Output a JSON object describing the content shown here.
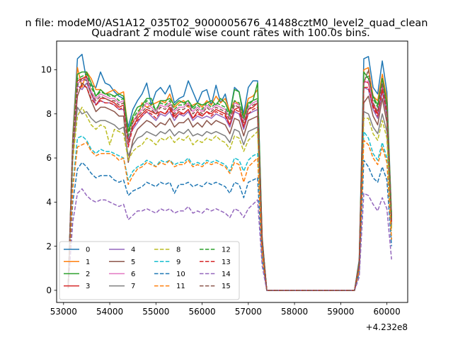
{
  "figure": {
    "suptitle": "n file: modeM0/AS1A12_035T02_9000005676_41488cztM0_level2_quad_clean"
  },
  "chart_data": {
    "type": "line",
    "title": "Quadrant 2 module wise count rates with 100.0s bins.",
    "xlabel": "",
    "ylabel": "",
    "x_offset_label": "+4.232e8",
    "x_ticks": [
      53000,
      54000,
      55000,
      56000,
      57000,
      58000,
      59000,
      60000
    ],
    "y_ticks": [
      0,
      2,
      4,
      6,
      8,
      10
    ],
    "xlim": [
      52850,
      60450
    ],
    "ylim": [
      -0.55,
      11.3
    ],
    "grid": false,
    "legend_location": "lower-left",
    "legend_columns": 4,
    "x": [
      53100,
      53200,
      53300,
      53400,
      53500,
      53600,
      53700,
      53800,
      53900,
      54000,
      54100,
      54200,
      54300,
      54400,
      54500,
      54600,
      54700,
      54800,
      54900,
      55000,
      55100,
      55200,
      55300,
      55400,
      55500,
      55600,
      55700,
      55800,
      55900,
      56000,
      56100,
      56200,
      56300,
      56400,
      56500,
      56600,
      56700,
      56800,
      56900,
      57000,
      57100,
      57200,
      57300,
      57400,
      57500,
      59300,
      59400,
      59500,
      59600,
      59700,
      59800,
      59900,
      60000,
      60100
    ],
    "series": [
      {
        "name": "0",
        "color": "#1f77b4",
        "dash": "solid",
        "values": [
          0.1,
          7.0,
          10.5,
          10.7,
          9.5,
          9.3,
          9.2,
          9.9,
          9.4,
          9.3,
          9.0,
          8.8,
          8.7,
          7.4,
          8.2,
          8.6,
          8.9,
          9.4,
          8.4,
          9.0,
          9.2,
          8.9,
          9.3,
          8.5,
          8.7,
          8.8,
          9.5,
          9.0,
          8.5,
          9.0,
          9.1,
          8.4,
          9.3,
          8.5,
          8.9,
          8.0,
          9.2,
          9.0,
          8.0,
          9.2,
          9.5,
          9.5,
          2.4,
          0.0,
          0.0,
          0.0,
          1.4,
          10.5,
          10.6,
          9.2,
          8.9,
          10.4,
          9.0,
          3.4
        ]
      },
      {
        "name": "1",
        "color": "#ff7f0e",
        "dash": "solid",
        "values": [
          0.1,
          6.9,
          10.1,
          9.2,
          9.9,
          9.6,
          9.1,
          9.1,
          8.9,
          9.0,
          9.1,
          8.9,
          9.0,
          7.2,
          7.7,
          7.9,
          8.5,
          8.3,
          8.4,
          8.5,
          8.6,
          8.5,
          8.9,
          8.3,
          8.5,
          8.6,
          8.3,
          8.4,
          8.5,
          8.3,
          8.6,
          8.4,
          8.8,
          8.5,
          8.7,
          8.1,
          8.6,
          8.4,
          7.9,
          8.7,
          8.8,
          9.1,
          2.3,
          0.0,
          0.0,
          0.0,
          1.3,
          10.0,
          10.1,
          8.8,
          8.6,
          9.8,
          8.7,
          3.3
        ]
      },
      {
        "name": "2",
        "color": "#2ca02c",
        "dash": "solid",
        "values": [
          0.1,
          6.7,
          9.8,
          9.9,
          9.9,
          9.4,
          8.8,
          9.1,
          8.9,
          8.9,
          8.8,
          8.9,
          8.8,
          7.2,
          7.9,
          8.3,
          8.4,
          8.7,
          8.7,
          8.1,
          8.6,
          8.6,
          8.7,
          8.4,
          8.6,
          8.5,
          8.6,
          8.3,
          8.5,
          8.4,
          8.5,
          8.6,
          8.4,
          8.7,
          8.5,
          8.0,
          9.1,
          9.0,
          7.8,
          8.5,
          8.6,
          9.4,
          2.3,
          0.0,
          0.0,
          0.0,
          1.3,
          9.9,
          9.6,
          8.8,
          8.4,
          9.6,
          8.5,
          3.3
        ]
      },
      {
        "name": "3",
        "color": "#d62728",
        "dash": "solid",
        "values": [
          0.1,
          6.5,
          9.5,
          9.6,
          9.7,
          9.0,
          8.4,
          8.7,
          8.7,
          8.6,
          8.5,
          8.3,
          8.4,
          6.8,
          7.4,
          7.8,
          8.0,
          8.2,
          8.1,
          8.0,
          8.1,
          8.0,
          8.3,
          7.9,
          8.1,
          8.0,
          8.2,
          7.8,
          8.1,
          7.9,
          8.1,
          8.0,
          8.2,
          8.1,
          8.0,
          7.5,
          8.2,
          8.3,
          7.4,
          8.2,
          8.3,
          8.5,
          2.2,
          0.0,
          0.0,
          0.0,
          1.2,
          9.5,
          9.4,
          8.4,
          8.0,
          9.3,
          8.1,
          3.1
        ]
      },
      {
        "name": "4",
        "color": "#9467bd",
        "dash": "solid",
        "values": [
          0.1,
          6.6,
          9.3,
          9.1,
          9.4,
          8.9,
          8.4,
          8.6,
          8.5,
          8.5,
          8.4,
          8.2,
          8.2,
          6.9,
          7.3,
          7.6,
          7.9,
          8.1,
          7.9,
          7.7,
          8.0,
          7.9,
          8.1,
          7.7,
          8.0,
          7.9,
          8.1,
          7.7,
          7.9,
          7.8,
          7.9,
          7.8,
          8.0,
          7.9,
          7.8,
          7.4,
          8.1,
          8.0,
          7.3,
          8.0,
          8.1,
          8.2,
          2.2,
          0.0,
          0.0,
          0.0,
          1.2,
          9.2,
          9.1,
          8.2,
          7.8,
          9.0,
          7.9,
          3.0
        ]
      },
      {
        "name": "5",
        "color": "#8c564b",
        "dash": "solid",
        "values": [
          0.1,
          6.3,
          8.8,
          9.4,
          9.2,
          8.6,
          8.1,
          8.3,
          8.3,
          8.2,
          8.1,
          7.9,
          7.9,
          5.8,
          6.8,
          7.3,
          7.5,
          7.7,
          7.6,
          7.4,
          7.6,
          7.5,
          7.8,
          7.4,
          7.6,
          7.6,
          7.8,
          7.4,
          7.6,
          7.4,
          7.7,
          7.5,
          7.7,
          7.6,
          7.5,
          7.1,
          7.8,
          7.7,
          7.0,
          7.7,
          7.8,
          7.9,
          2.1,
          0.0,
          0.0,
          0.0,
          1.1,
          8.5,
          8.8,
          7.9,
          7.5,
          8.7,
          7.6,
          2.9
        ]
      },
      {
        "name": "6",
        "color": "#e377c2",
        "dash": "solid",
        "values": [
          0.1,
          6.4,
          9.4,
          9.5,
          9.6,
          9.0,
          8.7,
          8.9,
          8.8,
          8.7,
          8.7,
          8.5,
          8.6,
          6.5,
          7.6,
          8.0,
          8.2,
          8.5,
          8.3,
          8.1,
          8.4,
          8.3,
          8.5,
          8.1,
          8.3,
          8.3,
          8.5,
          8.1,
          8.3,
          8.1,
          8.4,
          8.2,
          8.4,
          8.3,
          8.2,
          7.8,
          8.5,
          8.4,
          7.7,
          8.3,
          8.5,
          8.6,
          2.2,
          0.0,
          0.0,
          0.0,
          1.2,
          9.4,
          9.5,
          8.5,
          8.1,
          9.4,
          8.2,
          3.2
        ]
      },
      {
        "name": "7",
        "color": "#7f7f7f",
        "dash": "solid",
        "values": [
          0.1,
          6.1,
          8.3,
          8.0,
          8.1,
          7.8,
          7.6,
          7.7,
          7.7,
          7.6,
          7.5,
          7.3,
          7.4,
          6.1,
          6.6,
          6.9,
          7.0,
          7.2,
          7.1,
          7.0,
          7.2,
          7.1,
          7.3,
          7.0,
          7.2,
          7.1,
          7.3,
          7.0,
          7.1,
          7.0,
          7.2,
          7.1,
          7.2,
          7.1,
          7.0,
          6.7,
          7.3,
          7.2,
          6.6,
          7.2,
          7.3,
          7.4,
          2.0,
          0.0,
          0.0,
          0.0,
          1.1,
          8.1,
          8.0,
          7.4,
          7.1,
          8.0,
          7.2,
          2.8
        ]
      },
      {
        "name": "8",
        "color": "#bcbd22",
        "dash": "dashed",
        "values": [
          0.1,
          5.9,
          7.9,
          8.3,
          7.9,
          7.5,
          7.3,
          7.5,
          7.4,
          6.6,
          7.3,
          7.2,
          7.1,
          5.9,
          6.3,
          6.5,
          6.6,
          6.9,
          6.8,
          6.6,
          6.9,
          6.8,
          7.0,
          6.7,
          6.9,
          6.8,
          7.0,
          6.6,
          6.8,
          6.7,
          6.9,
          6.8,
          7.0,
          6.8,
          6.7,
          6.4,
          7.0,
          6.9,
          6.3,
          6.8,
          7.0,
          7.2,
          1.9,
          0.0,
          0.0,
          0.0,
          1.0,
          7.8,
          7.8,
          7.1,
          6.8,
          7.7,
          6.9,
          2.7
        ]
      },
      {
        "name": "9",
        "color": "#17becf",
        "dash": "dashed",
        "values": [
          0.1,
          4.8,
          6.9,
          7.0,
          6.8,
          6.4,
          6.2,
          6.4,
          6.3,
          6.3,
          6.2,
          6.1,
          6.0,
          5.0,
          5.4,
          5.6,
          5.7,
          5.9,
          5.8,
          5.6,
          5.9,
          5.8,
          5.9,
          5.7,
          5.8,
          5.8,
          6.0,
          5.7,
          5.8,
          5.7,
          5.9,
          5.8,
          5.9,
          5.8,
          5.7,
          5.4,
          6.0,
          5.9,
          5.4,
          5.9,
          6.1,
          6.2,
          1.7,
          0.0,
          0.0,
          0.0,
          0.9,
          7.2,
          6.9,
          6.2,
          5.9,
          6.7,
          6.0,
          2.3
        ]
      },
      {
        "name": "10",
        "color": "#1f77b4",
        "dash": "dashed",
        "values": [
          0.1,
          4.0,
          5.5,
          5.8,
          5.6,
          5.3,
          5.1,
          5.2,
          5.2,
          5.2,
          5.0,
          4.9,
          5.0,
          4.3,
          4.5,
          4.6,
          4.7,
          4.9,
          4.8,
          4.7,
          4.9,
          4.8,
          4.9,
          4.4,
          4.8,
          4.8,
          4.9,
          4.7,
          4.8,
          4.7,
          4.9,
          4.8,
          4.9,
          4.8,
          4.7,
          4.4,
          4.9,
          4.8,
          4.2,
          4.9,
          5.0,
          5.1,
          1.4,
          0.0,
          0.0,
          0.0,
          0.8,
          5.9,
          5.6,
          5.1,
          4.9,
          5.6,
          5.0,
          2.0
        ]
      },
      {
        "name": "11",
        "color": "#ff7f0e",
        "dash": "dashed",
        "values": [
          0.1,
          4.6,
          6.5,
          6.6,
          6.7,
          6.3,
          6.1,
          6.2,
          6.2,
          6.2,
          6.1,
          5.9,
          6.0,
          4.8,
          5.2,
          5.5,
          5.6,
          5.8,
          5.7,
          5.6,
          5.8,
          5.7,
          5.9,
          5.6,
          5.7,
          5.7,
          5.9,
          5.6,
          5.7,
          5.6,
          5.8,
          5.7,
          5.8,
          5.7,
          5.6,
          5.3,
          5.8,
          5.7,
          4.9,
          5.6,
          5.8,
          6.0,
          1.6,
          0.0,
          0.0,
          0.0,
          0.9,
          6.8,
          6.6,
          6.0,
          5.7,
          6.5,
          5.8,
          2.3
        ]
      },
      {
        "name": "12",
        "color": "#2ca02c",
        "dash": "dashed",
        "values": [
          0.1,
          6.6,
          9.6,
          9.7,
          9.8,
          9.2,
          8.8,
          9.0,
          8.9,
          8.8,
          8.8,
          8.6,
          8.7,
          7.0,
          7.8,
          8.1,
          8.3,
          8.6,
          8.4,
          8.2,
          8.5,
          8.4,
          8.6,
          8.2,
          8.4,
          8.4,
          8.6,
          8.2,
          8.4,
          8.2,
          8.5,
          8.3,
          8.5,
          8.4,
          8.3,
          7.9,
          8.6,
          8.5,
          7.8,
          8.4,
          8.6,
          8.7,
          2.3,
          0.0,
          0.0,
          0.0,
          1.2,
          9.6,
          9.7,
          8.7,
          8.3,
          9.6,
          8.4,
          3.3
        ]
      },
      {
        "name": "13",
        "color": "#d62728",
        "dash": "dashed",
        "values": [
          0.1,
          6.4,
          9.1,
          9.3,
          9.2,
          8.7,
          8.4,
          8.6,
          8.5,
          8.5,
          8.4,
          8.2,
          8.3,
          6.5,
          7.4,
          7.7,
          7.9,
          8.1,
          8.0,
          7.8,
          8.1,
          8.0,
          8.2,
          7.8,
          8.0,
          8.0,
          8.2,
          7.8,
          8.0,
          7.9,
          8.1,
          7.9,
          8.1,
          8.0,
          7.9,
          7.5,
          8.2,
          8.1,
          7.4,
          8.0,
          8.2,
          8.3,
          2.2,
          0.0,
          0.0,
          0.0,
          1.2,
          9.2,
          9.2,
          8.3,
          7.9,
          9.1,
          8.0,
          3.1
        ]
      },
      {
        "name": "14",
        "color": "#9467bd",
        "dash": "dashed",
        "values": [
          0.1,
          3.1,
          4.4,
          4.6,
          4.3,
          4.1,
          4.0,
          4.1,
          4.1,
          4.0,
          3.9,
          3.8,
          3.9,
          3.2,
          3.4,
          3.6,
          3.6,
          3.7,
          3.6,
          3.5,
          3.7,
          3.6,
          3.7,
          3.5,
          3.6,
          3.6,
          3.8,
          3.5,
          3.6,
          3.5,
          3.7,
          3.6,
          3.7,
          3.6,
          3.5,
          3.3,
          3.7,
          3.6,
          3.3,
          3.7,
          3.9,
          4.1,
          1.1,
          0.0,
          0.0,
          0.0,
          0.6,
          4.4,
          4.3,
          3.9,
          3.6,
          4.2,
          3.7,
          1.4
        ]
      },
      {
        "name": "15",
        "color": "#8c564b",
        "dash": "dashed",
        "values": [
          0.1,
          6.5,
          9.3,
          9.6,
          9.5,
          8.9,
          8.6,
          8.8,
          8.7,
          8.6,
          8.6,
          8.4,
          8.5,
          6.7,
          7.6,
          7.9,
          8.1,
          8.3,
          8.2,
          8.0,
          8.3,
          8.2,
          8.4,
          8.0,
          8.2,
          8.2,
          8.4,
          8.0,
          8.2,
          8.0,
          8.3,
          8.1,
          8.3,
          8.2,
          8.1,
          7.7,
          8.4,
          8.3,
          7.6,
          8.2,
          8.4,
          8.5,
          2.3,
          0.0,
          0.0,
          0.0,
          1.2,
          9.4,
          10.0,
          8.5,
          8.1,
          9.4,
          8.2,
          3.2
        ]
      }
    ]
  }
}
